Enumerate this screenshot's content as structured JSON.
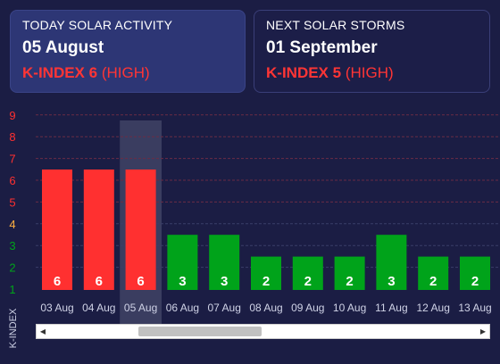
{
  "today": {
    "heading": "TODAY SOLAR ACTIVITY",
    "date": "05 August",
    "kindex": "K-INDEX 6",
    "level": "(HIGH)"
  },
  "next": {
    "heading": "NEXT SOLAR STORMS",
    "date": "01 September",
    "kindex": "K-INDEX 5",
    "level": "(HIGH)"
  },
  "colors": {
    "high": "#ff3030",
    "medium": "#ffb040",
    "low": "#00a31a",
    "highlight_column": "#3a3d60",
    "text_muted": "#cfd2e6"
  },
  "scrollbar": {
    "left_icon": "triangle-left-icon",
    "right_icon": "triangle-right-icon"
  },
  "chart_data": {
    "type": "bar",
    "ylabel": "K-INDEX",
    "ylim": [
      1,
      9
    ],
    "yticks": [
      1,
      2,
      3,
      4,
      5,
      6,
      7,
      8,
      9
    ],
    "categories": [
      "03 Aug",
      "04 Aug",
      "05 Aug",
      "06 Aug",
      "07 Aug",
      "08 Aug",
      "09 Aug",
      "10 Aug",
      "11 Aug",
      "12 Aug",
      "13 Aug"
    ],
    "values": [
      6,
      6,
      6,
      3,
      3,
      2,
      2,
      2,
      3,
      2,
      2
    ],
    "highlighted_category": "05 Aug",
    "grid": "dashed horizontal"
  }
}
